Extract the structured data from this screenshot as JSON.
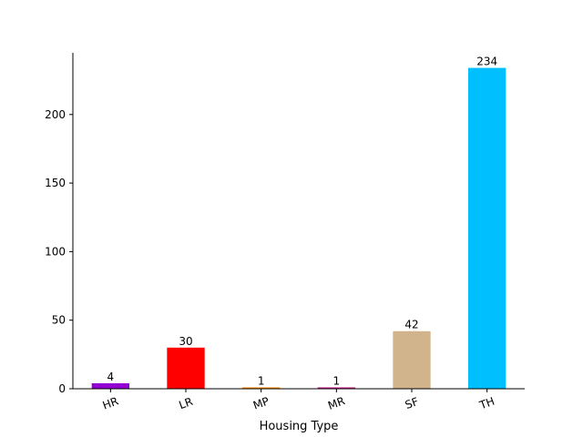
{
  "chart_data": {
    "type": "bar",
    "title": "",
    "xlabel": "Housing Type",
    "ylabel": "",
    "categories": [
      "HR",
      "LR",
      "MP",
      "MR",
      "SF",
      "TH"
    ],
    "values": [
      4,
      30,
      1,
      1,
      42,
      234
    ],
    "data_labels": [
      "4",
      "30",
      "1",
      "1",
      "42",
      "234"
    ],
    "colors": [
      "#9400d3",
      "#ff0000",
      "#ff8c00",
      "#c71585",
      "#d2b48c",
      "#00bfff"
    ],
    "yticks": [
      0,
      50,
      100,
      150,
      200
    ],
    "ylim": [
      0,
      245
    ],
    "grid": false,
    "legend": "none",
    "x_tick_rotation_deg": 20,
    "spines": [
      "left",
      "bottom"
    ]
  }
}
